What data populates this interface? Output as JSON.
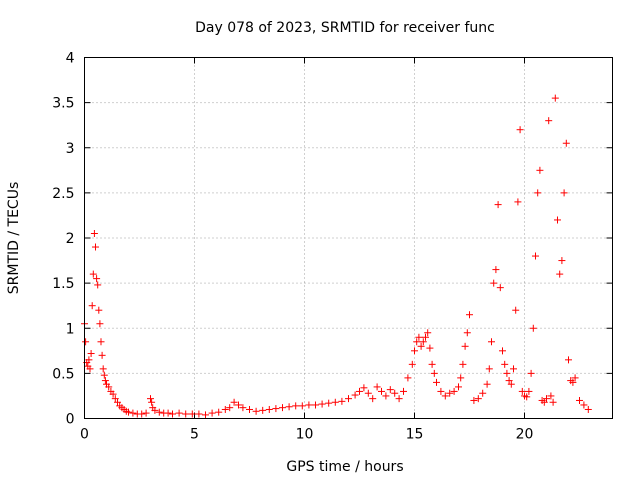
{
  "chart_data": {
    "type": "scatter",
    "title": "Day 078 of 2023, SRMTID for receiver func",
    "xlabel": "GPS time / hours",
    "ylabel": "SRMTID / TECUs",
    "xlim": [
      0,
      24
    ],
    "ylim": [
      0,
      4
    ],
    "xticks": [
      0,
      5,
      10,
      15,
      20
    ],
    "xtick_labels": [
      "0",
      "5",
      "10",
      "15",
      "20"
    ],
    "yticks": [
      0,
      0.5,
      1,
      1.5,
      2,
      2.5,
      3,
      3.5,
      4
    ],
    "ytick_labels": [
      "0",
      "0.5",
      "1",
      "1.5",
      "2",
      "2.5",
      "3",
      "3.5",
      "4"
    ],
    "grid": true,
    "marker": "+",
    "color": "#ff0000",
    "series": [
      {
        "name": "SRMTID",
        "x": [
          0.0,
          0.05,
          0.1,
          0.15,
          0.2,
          0.25,
          0.3,
          0.35,
          0.4,
          0.45,
          0.5,
          0.55,
          0.6,
          0.65,
          0.7,
          0.75,
          0.8,
          0.85,
          0.9,
          0.95,
          1.0,
          1.1,
          1.2,
          1.3,
          1.4,
          1.5,
          1.6,
          1.7,
          1.8,
          1.9,
          2.0,
          2.2,
          2.4,
          2.6,
          2.8,
          3.0,
          3.05,
          3.1,
          3.2,
          3.4,
          3.6,
          3.8,
          4.0,
          4.3,
          4.6,
          4.9,
          5.2,
          5.5,
          5.8,
          6.1,
          6.4,
          6.6,
          6.8,
          7.0,
          7.2,
          7.5,
          7.8,
          8.1,
          8.4,
          8.7,
          9.0,
          9.3,
          9.6,
          9.9,
          10.2,
          10.5,
          10.8,
          11.1,
          11.4,
          11.7,
          12.0,
          12.3,
          12.5,
          12.7,
          12.9,
          13.1,
          13.3,
          13.5,
          13.7,
          13.9,
          14.1,
          14.3,
          14.5,
          14.7,
          14.9,
          15.0,
          15.1,
          15.2,
          15.3,
          15.4,
          15.5,
          15.6,
          15.7,
          15.8,
          15.9,
          16.0,
          16.2,
          16.4,
          16.6,
          16.8,
          17.0,
          17.1,
          17.2,
          17.3,
          17.4,
          17.5,
          17.7,
          17.9,
          18.1,
          18.3,
          18.4,
          18.5,
          18.6,
          18.7,
          18.8,
          18.9,
          19.0,
          19.1,
          19.2,
          19.3,
          19.4,
          19.5,
          19.6,
          19.7,
          19.8,
          19.9,
          20.0,
          20.1,
          20.2,
          20.3,
          20.4,
          20.5,
          20.6,
          20.7,
          20.8,
          20.9,
          21.0,
          21.1,
          21.2,
          21.3,
          21.4,
          21.5,
          21.6,
          21.7,
          21.8,
          21.9,
          22.0,
          22.1,
          22.2,
          22.3,
          22.5,
          22.7,
          22.9
        ],
        "values": [
          1.05,
          0.85,
          0.62,
          0.58,
          0.65,
          0.55,
          0.72,
          1.25,
          1.6,
          2.05,
          1.9,
          1.55,
          1.48,
          1.2,
          1.05,
          0.85,
          0.7,
          0.55,
          0.48,
          0.42,
          0.38,
          0.35,
          0.3,
          0.27,
          0.22,
          0.18,
          0.14,
          0.12,
          0.1,
          0.08,
          0.07,
          0.06,
          0.05,
          0.05,
          0.06,
          0.22,
          0.18,
          0.12,
          0.09,
          0.07,
          0.06,
          0.06,
          0.05,
          0.06,
          0.05,
          0.05,
          0.05,
          0.04,
          0.06,
          0.07,
          0.1,
          0.12,
          0.18,
          0.15,
          0.12,
          0.1,
          0.08,
          0.09,
          0.1,
          0.11,
          0.12,
          0.13,
          0.14,
          0.14,
          0.15,
          0.15,
          0.16,
          0.17,
          0.18,
          0.19,
          0.22,
          0.26,
          0.3,
          0.34,
          0.28,
          0.22,
          0.35,
          0.3,
          0.25,
          0.32,
          0.28,
          0.22,
          0.3,
          0.45,
          0.6,
          0.75,
          0.85,
          0.9,
          0.8,
          0.85,
          0.9,
          0.95,
          0.78,
          0.6,
          0.5,
          0.4,
          0.3,
          0.25,
          0.28,
          0.3,
          0.35,
          0.45,
          0.6,
          0.8,
          0.95,
          1.15,
          0.2,
          0.22,
          0.28,
          0.38,
          0.55,
          0.85,
          1.5,
          1.65,
          2.37,
          1.45,
          0.75,
          0.6,
          0.5,
          0.42,
          0.38,
          0.55,
          1.2,
          2.4,
          3.2,
          0.3,
          0.25,
          0.24,
          0.3,
          0.5,
          1.0,
          1.8,
          2.5,
          2.75,
          0.2,
          0.18,
          0.22,
          3.3,
          0.25,
          0.18,
          3.55,
          2.2,
          1.6,
          1.75,
          2.5,
          3.05,
          0.65,
          0.42,
          0.4,
          0.45,
          0.2,
          0.15,
          0.1
        ]
      }
    ]
  }
}
